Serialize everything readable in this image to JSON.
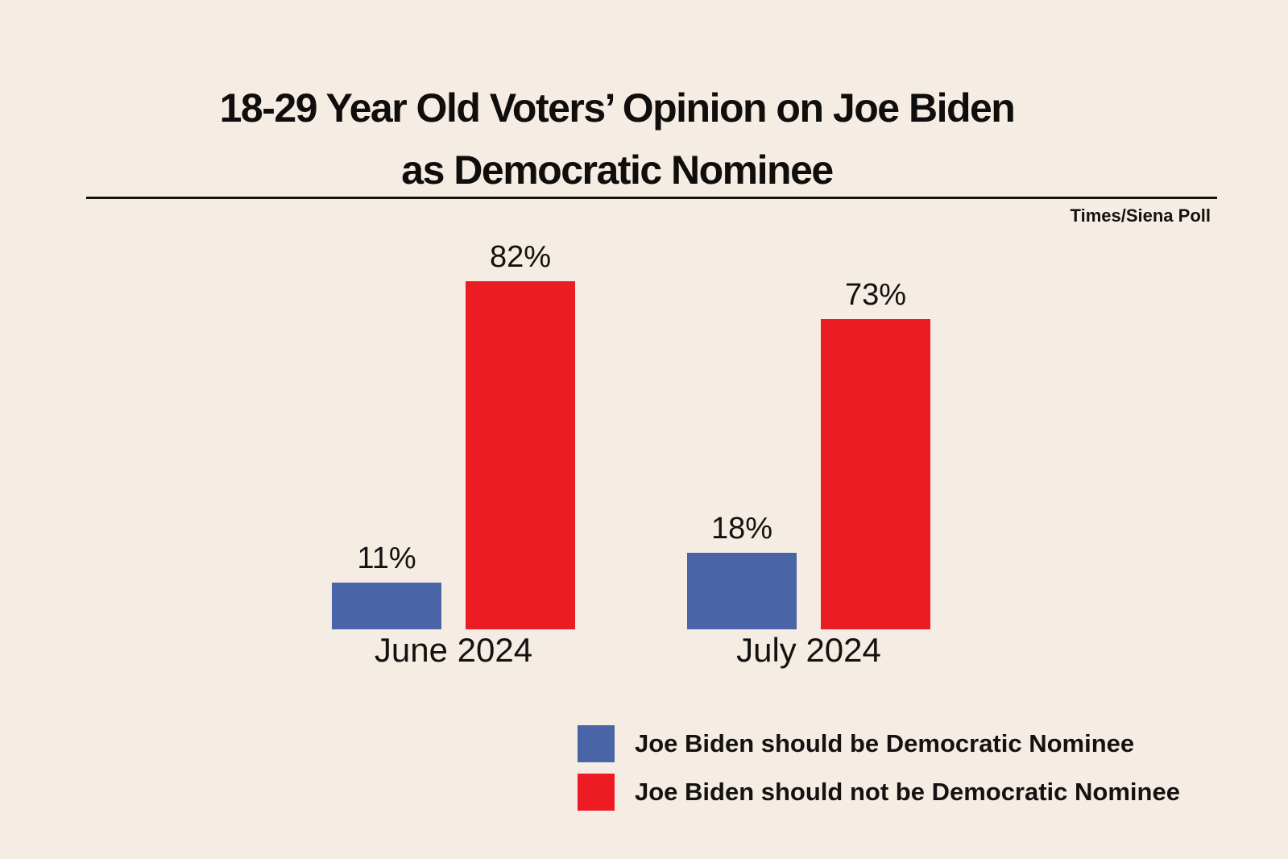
{
  "page": {
    "background_color": "#f5ece3",
    "text_color": "#131211"
  },
  "header": {
    "title_line1": "18-29 Year Old Voters’ Opinion on Joe Biden",
    "title_line2": "as Democratic Nominee",
    "source": "Times/Siena Poll"
  },
  "chart_data": {
    "type": "bar",
    "title": "18-29 Year Old Voters’ Opinion on Joe Biden as Democratic Nominee",
    "source": "Times/Siena Poll",
    "categories": [
      "June 2024",
      "July 2024"
    ],
    "series": [
      {
        "name": "Joe Biden should be Democratic Nominee",
        "color": "#4a64a8",
        "values": [
          11,
          18
        ]
      },
      {
        "name": "Joe Biden should not be Democratic Nominee",
        "color": "#ed1c24",
        "values": [
          82,
          73
        ]
      }
    ],
    "ylim": [
      0,
      100
    ],
    "grid": false,
    "axes_visible": false,
    "legend_position": "bottom-center",
    "value_label_format": "percent",
    "groups": [
      {
        "label": "June 2024",
        "bars": [
          {
            "series": "Joe Biden should be Democratic Nominee",
            "value": 11,
            "label": "11%",
            "color": "#4a64a8"
          },
          {
            "series": "Joe Biden should not be Democratic Nominee",
            "value": 82,
            "label": "82%",
            "color": "#ed1c24"
          }
        ]
      },
      {
        "label": "July 2024",
        "bars": [
          {
            "series": "Joe Biden should be Democratic Nominee",
            "value": 18,
            "label": "18%",
            "color": "#4a64a8"
          },
          {
            "series": "Joe Biden should not be Democratic Nominee",
            "value": 73,
            "label": "73%",
            "color": "#ed1c24"
          }
        ]
      }
    ],
    "legend": [
      {
        "label": "Joe Biden should be Democratic Nominee",
        "color": "#4a64a8"
      },
      {
        "label": "Joe Biden should not be Democratic Nominee",
        "color": "#ed1c24"
      }
    ]
  }
}
